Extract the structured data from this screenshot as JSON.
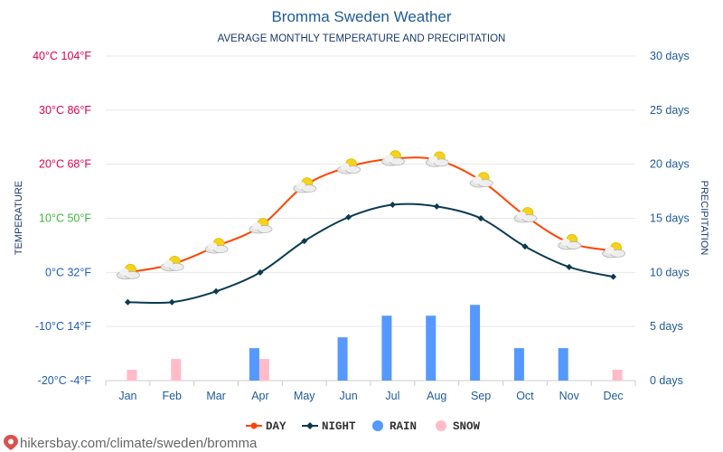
{
  "colors": {
    "day": "#ff4500",
    "night": "#0c3b52",
    "rain": "#5599ff",
    "snow": "#ffbcc8",
    "grid": "#e8e8e8",
    "text_blue": "#1f5b9c"
  },
  "chart_data": {
    "type": "line",
    "title": "Bromma Sweden Weather",
    "subtitle": "AVERAGE MONTHLY TEMPERATURE AND PRECIPITATION",
    "ylabel_left": "TEMPERATURE",
    "ylabel_right": "PRECIPITATION",
    "categories": [
      "Jan",
      "Feb",
      "Mar",
      "Apr",
      "May",
      "Jun",
      "Jul",
      "Aug",
      "Sep",
      "Oct",
      "Nov",
      "Dec"
    ],
    "temp_ylim": [
      -20,
      40
    ],
    "temp_ticks": [
      {
        "value": 40,
        "label": "40°C 104°F",
        "color": "#e5004c"
      },
      {
        "value": 30,
        "label": "30°C 86°F",
        "color": "#e5004c"
      },
      {
        "value": 20,
        "label": "20°C 68°F",
        "color": "#e5004c"
      },
      {
        "value": 10,
        "label": "10°C 50°F",
        "color": "#3cb93c"
      },
      {
        "value": 0,
        "label": "0°C 32°F",
        "color": "#1f5bbf"
      },
      {
        "value": -10,
        "label": "-10°C 14°F",
        "color": "#1f5bbf"
      },
      {
        "value": -20,
        "label": "-20°C -4°F",
        "color": "#1f5bbf"
      }
    ],
    "precip_ylim": [
      0,
      30
    ],
    "precip_ticks": [
      {
        "value": 30,
        "label": "30 days"
      },
      {
        "value": 25,
        "label": "25 days"
      },
      {
        "value": 20,
        "label": "20 days"
      },
      {
        "value": 15,
        "label": "15 days"
      },
      {
        "value": 10,
        "label": "10 days"
      },
      {
        "value": 5,
        "label": "5 days"
      },
      {
        "value": 0,
        "label": "0 days"
      }
    ],
    "series": [
      {
        "name": "DAY",
        "kind": "line",
        "values": [
          0,
          1.5,
          4.8,
          8.5,
          16,
          19.5,
          21,
          20.8,
          17,
          10.5,
          5.5,
          4
        ]
      },
      {
        "name": "NIGHT",
        "kind": "line",
        "values": [
          -5.5,
          -5.5,
          -3.5,
          0,
          5.8,
          10.2,
          12.5,
          12.2,
          10,
          4.8,
          1,
          -0.8
        ]
      },
      {
        "name": "RAIN",
        "kind": "bar",
        "values": [
          0,
          0,
          0,
          3,
          0,
          4,
          6,
          6,
          7,
          3,
          3,
          0
        ]
      },
      {
        "name": "SNOW",
        "kind": "bar",
        "values": [
          1,
          2,
          0,
          2,
          0,
          0,
          0,
          0,
          0,
          0,
          0,
          1
        ]
      }
    ],
    "weather_icons": [
      "cloud-sun-icon",
      "cloud-sun-icon",
      "cloud-sun-icon",
      "cloud-sun-icon",
      "cloud-sun-icon",
      "cloud-sun-icon",
      "cloud-sun-icon",
      "cloud-sun-icon",
      "cloud-sun-icon",
      "cloud-sun-icon",
      "cloud-sun-icon",
      "cloud-sun-icon"
    ],
    "legend": [
      "DAY",
      "NIGHT",
      "RAIN",
      "SNOW"
    ],
    "legend_position": "bottom-center"
  },
  "footer": {
    "url": "hikersbay.com/climate/sweden/bromma"
  }
}
